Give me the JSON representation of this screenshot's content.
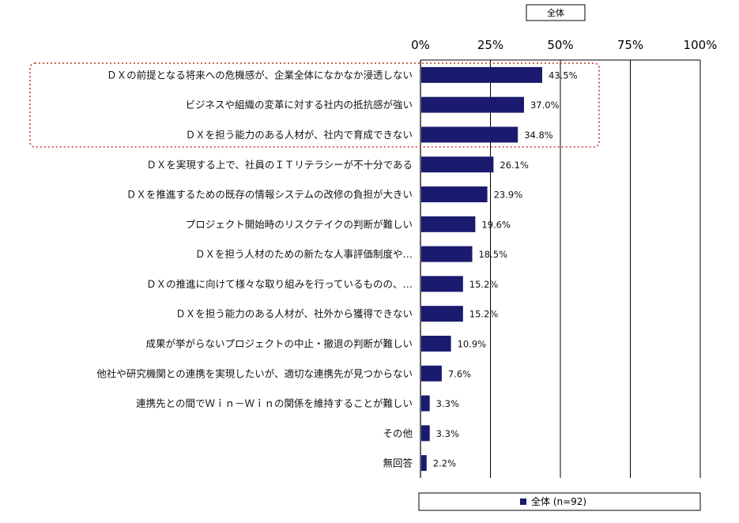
{
  "chart_data": {
    "type": "bar",
    "orientation": "horizontal",
    "title": "全体",
    "categories": [
      "ＤＸの前提となる将来への危機感が、企業全体になかなか浸透しない",
      "ビジネスや組織の変革に対する社内の抵抗感が強い",
      "ＤＸを担う能力のある人材が、社内で育成できない",
      "ＤＸを実現する上で、社員のＩＴリテラシーが不十分である",
      "ＤＸを推進するための既存の情報システムの改修の負担が大きい",
      "プロジェクト開始時のリスクテイクの判断が難しい",
      "ＤＸを担う人材のための新たな人事評価制度や…",
      "ＤＸの推進に向けて様々な取り組みを行っているものの、…",
      "ＤＸを担う能力のある人材が、社外から獲得できない",
      "成果が挙がらないプロジェクトの中止・撤退の判断が難しい",
      "他社や研究機関との連携を実現したいが、適切な連携先が見つからない",
      "連携先との間でＷｉｎ－Ｗｉｎの関係を維持することが難しい",
      "その他",
      "無回答"
    ],
    "series": [
      {
        "name": "全体 (n=92)",
        "values": [
          43.5,
          37.0,
          34.8,
          26.1,
          23.9,
          19.6,
          18.5,
          15.2,
          15.2,
          10.9,
          7.6,
          3.3,
          3.3,
          2.2
        ],
        "value_labels": [
          "43.5%",
          "37.0%",
          "34.8%",
          "26.1%",
          "23.9%",
          "19.6%",
          "18.5%",
          "15.2%",
          "15.2%",
          "10.9%",
          "7.6%",
          "3.3%",
          "3.3%",
          "2.2%"
        ]
      }
    ],
    "xlim": [
      0,
      100
    ],
    "xticks": [
      0,
      25,
      50,
      75,
      100
    ],
    "xtick_labels": [
      "0%",
      "25%",
      "50%",
      "75%",
      "100%"
    ],
    "grid": true,
    "legend_position": "bottom",
    "highlight": "top-3 categories enclosed by dotted red box",
    "colors": {
      "bar": "#1a1a6e",
      "highlight_box": "#c0392b",
      "grid": "#000000"
    }
  }
}
